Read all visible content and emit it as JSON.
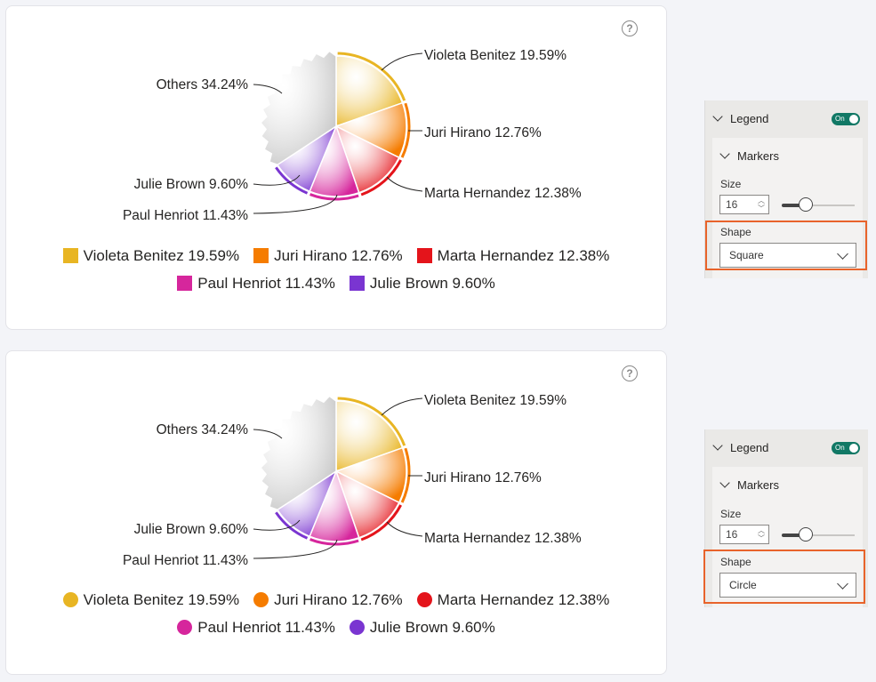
{
  "chart_data": [
    {
      "type": "pie",
      "title": "",
      "slices": [
        {
          "label": "Violeta Benitez",
          "pct_label": "19.59%",
          "value": 19.59,
          "color": "#e8b523"
        },
        {
          "label": "Juri Hirano",
          "pct_label": "12.76%",
          "value": 12.76,
          "color": "#f57c00"
        },
        {
          "label": "Marta Hernandez",
          "pct_label": "12.38%",
          "value": 12.38,
          "color": "#e4141b"
        },
        {
          "label": "Paul Henriot",
          "pct_label": "11.43%",
          "value": 11.43,
          "color": "#d6269c"
        },
        {
          "label": "Julie Brown",
          "pct_label": "9.60%",
          "value": 9.6,
          "color": "#7a35d1"
        },
        {
          "label": "Others",
          "pct_label": "34.24%",
          "value": 34.24,
          "color": "#c6c6c6"
        }
      ],
      "data_labels": [
        "Violeta Benitez 19.59%",
        "Juri Hirano 12.76%",
        "Marta Hernandez 12.38%",
        "Paul Henriot 11.43%",
        "Julie Brown 9.60%",
        "Others 34.24%"
      ],
      "legend": [
        "Violeta Benitez 19.59%",
        "Juri Hirano 12.76%",
        "Marta Hernandez 12.38%",
        "Paul Henriot 11.43%",
        "Julie Brown 9.60%"
      ],
      "legend_marker_shape": "square",
      "legend_placement": "bottom"
    },
    {
      "type": "pie",
      "title": "",
      "slices": [
        {
          "label": "Violeta Benitez",
          "pct_label": "19.59%",
          "value": 19.59,
          "color": "#e8b523"
        },
        {
          "label": "Juri Hirano",
          "pct_label": "12.76%",
          "value": 12.76,
          "color": "#f57c00"
        },
        {
          "label": "Marta Hernandez",
          "pct_label": "12.38%",
          "value": 12.38,
          "color": "#e4141b"
        },
        {
          "label": "Paul Henriot",
          "pct_label": "11.43%",
          "value": 11.43,
          "color": "#d6269c"
        },
        {
          "label": "Julie Brown",
          "pct_label": "9.60%",
          "value": 9.6,
          "color": "#7a35d1"
        },
        {
          "label": "Others",
          "pct_label": "34.24%",
          "value": 34.24,
          "color": "#c6c6c6"
        }
      ],
      "data_labels": [
        "Violeta Benitez 19.59%",
        "Juri Hirano 12.76%",
        "Marta Hernandez 12.38%",
        "Paul Henriot 11.43%",
        "Julie Brown 9.60%",
        "Others 34.24%"
      ],
      "legend": [
        "Violeta Benitez 19.59%",
        "Juri Hirano 12.76%",
        "Marta Hernandez 12.38%",
        "Paul Henriot 11.43%",
        "Julie Brown 9.60%"
      ],
      "legend_marker_shape": "circle",
      "legend_placement": "bottom"
    }
  ],
  "help_icon": "?",
  "panels": [
    {
      "section": "Legend",
      "toggle": "On",
      "subsection": "Markers",
      "size_label": "Size",
      "size_value": "16",
      "size_slider_fraction": 0.3,
      "shape_label": "Shape",
      "shape_value": "Square",
      "highlight_color": "#e8632b"
    },
    {
      "section": "Legend",
      "toggle": "On",
      "subsection": "Markers",
      "size_label": "Size",
      "size_value": "16",
      "size_slider_fraction": 0.3,
      "shape_label": "Shape",
      "shape_value": "Circle",
      "highlight_color": "#e8632b"
    }
  ]
}
